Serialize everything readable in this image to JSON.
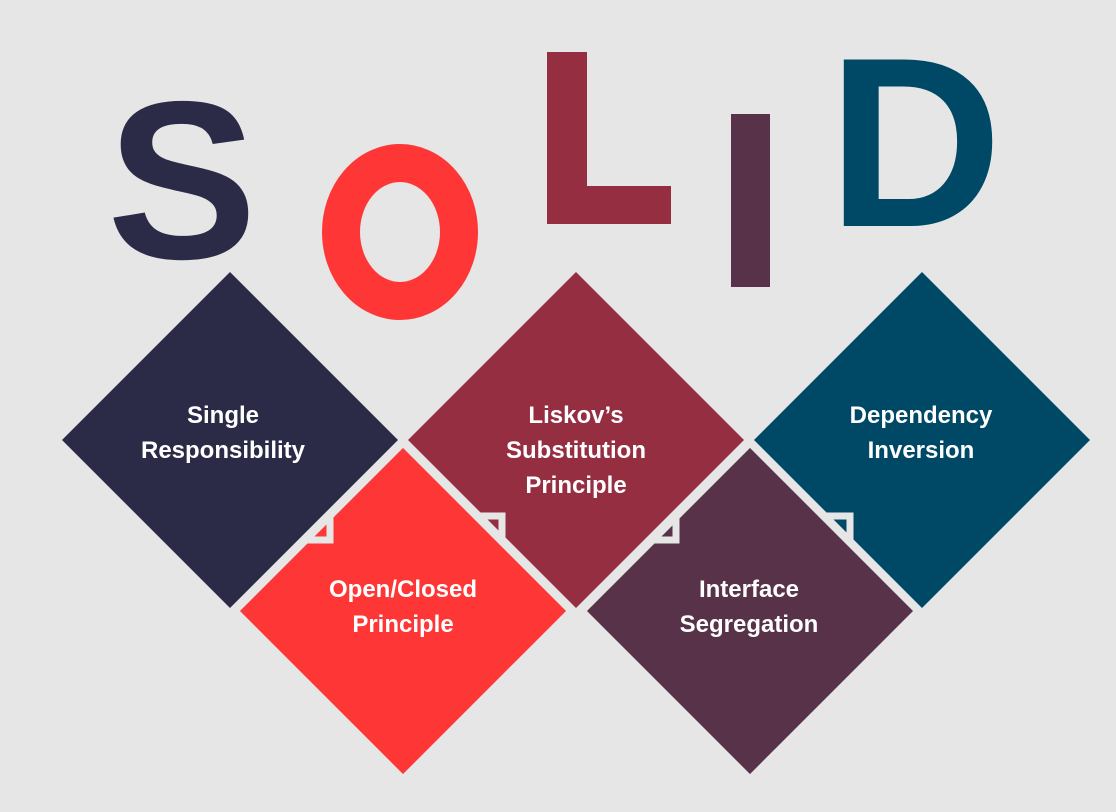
{
  "letters": [
    "S",
    "O",
    "L",
    "I",
    "D"
  ],
  "principles": [
    {
      "lines": [
        "Single",
        "Responsibility"
      ]
    },
    {
      "lines": [
        "Open/Closed",
        "Principle"
      ]
    },
    {
      "lines": [
        "Liskov’s",
        "Substitution",
        "Principle"
      ]
    },
    {
      "lines": [
        "Interface",
        "Segregation"
      ]
    },
    {
      "lines": [
        "Dependency",
        "Inversion"
      ]
    }
  ],
  "colors": {
    "background": "#e6e6e6",
    "S": "#2b2b47",
    "O": "#ff3636",
    "L": "#962e42",
    "I": "#573248",
    "D": "#004966"
  }
}
